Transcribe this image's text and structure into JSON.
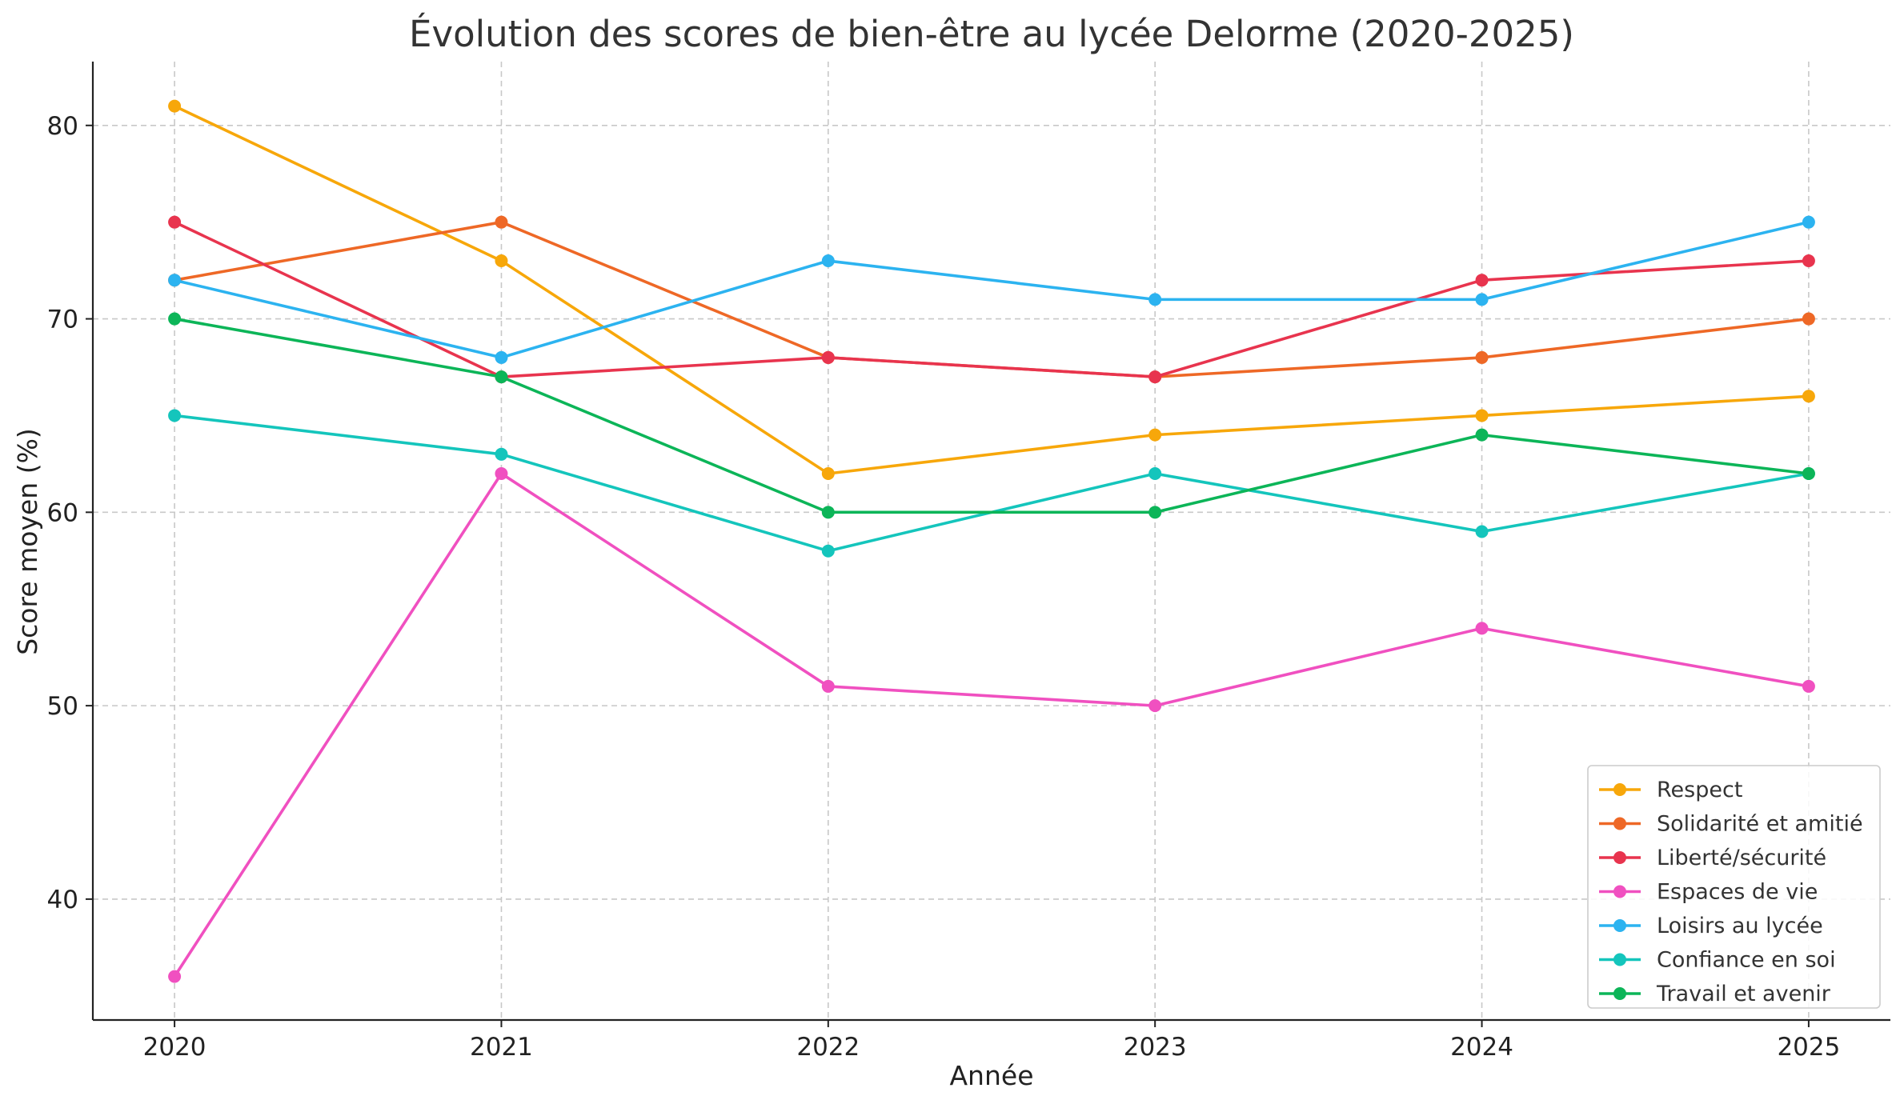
{
  "chart_data": {
    "type": "line",
    "title": "Évolution des scores de bien-être au lycée Delorme (2020-2025)",
    "xlabel": "Année",
    "ylabel": "Score moyen (%)",
    "x": [
      2020,
      2021,
      2022,
      2023,
      2024,
      2025
    ],
    "x_tick_labels": [
      "2020",
      "2021",
      "2022",
      "2023",
      "2024",
      "2025"
    ],
    "y_ticks": [
      40,
      50,
      60,
      70,
      80
    ],
    "y_tick_labels": [
      "40",
      "50",
      "60",
      "70",
      "80"
    ],
    "ylim": [
      33.75,
      83.3
    ],
    "xlim": [
      2019.75,
      2025.25
    ],
    "grid": true,
    "legend_position": "bottom-right",
    "series": [
      {
        "name": "Respect",
        "color": "#F7A70A",
        "values": [
          81,
          73,
          62,
          64,
          65,
          66
        ]
      },
      {
        "name": "Solidarité et amitié",
        "color": "#EE6826",
        "values": [
          72,
          75,
          68,
          67,
          68,
          70
        ]
      },
      {
        "name": "Liberté/sécurité",
        "color": "#E8344E",
        "values": [
          75,
          67,
          68,
          67,
          72,
          73
        ]
      },
      {
        "name": "Espaces de vie",
        "color": "#F050C0",
        "values": [
          36,
          62,
          51,
          50,
          54,
          51
        ]
      },
      {
        "name": "Loisirs au lycée",
        "color": "#2CB3F0",
        "values": [
          72,
          68,
          73,
          71,
          71,
          75
        ]
      },
      {
        "name": "Confiance en soi",
        "color": "#14C5BC",
        "values": [
          65,
          63,
          58,
          62,
          59,
          62
        ]
      },
      {
        "name": "Travail et avenir",
        "color": "#0CB558",
        "values": [
          70,
          67,
          60,
          60,
          64,
          62
        ]
      }
    ]
  }
}
